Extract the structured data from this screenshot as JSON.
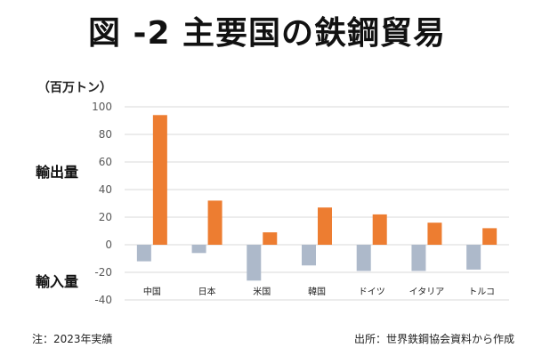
{
  "title": "図 -2 主要国の鉄鋼貿易",
  "unit_label": "（百万トン）",
  "export_label": "輸出量",
  "import_label": "輸入量",
  "note": "注：2023年実績",
  "source": "出所：世界鉄鋼協会資料から作成",
  "colors": {
    "export": "#ED7D31",
    "import": "#ADB9CA",
    "grid": "#D9D9D9"
  },
  "chart_data": {
    "type": "bar",
    "title": "",
    "ylim": [
      -40,
      100
    ],
    "yticks": [
      -40,
      -20,
      0,
      20,
      40,
      60,
      80,
      100
    ],
    "grid": true,
    "legend": "none",
    "categories": [
      "中国",
      "日本",
      "米国",
      "韓国",
      "ドイツ",
      "イタリア",
      "トルコ"
    ],
    "series": [
      {
        "name": "輸入量",
        "values": [
          -12,
          -6,
          -26,
          -15,
          -19,
          -19,
          -18
        ]
      },
      {
        "name": "輸出量",
        "values": [
          94,
          32,
          9,
          27,
          22,
          16,
          12
        ]
      }
    ]
  }
}
